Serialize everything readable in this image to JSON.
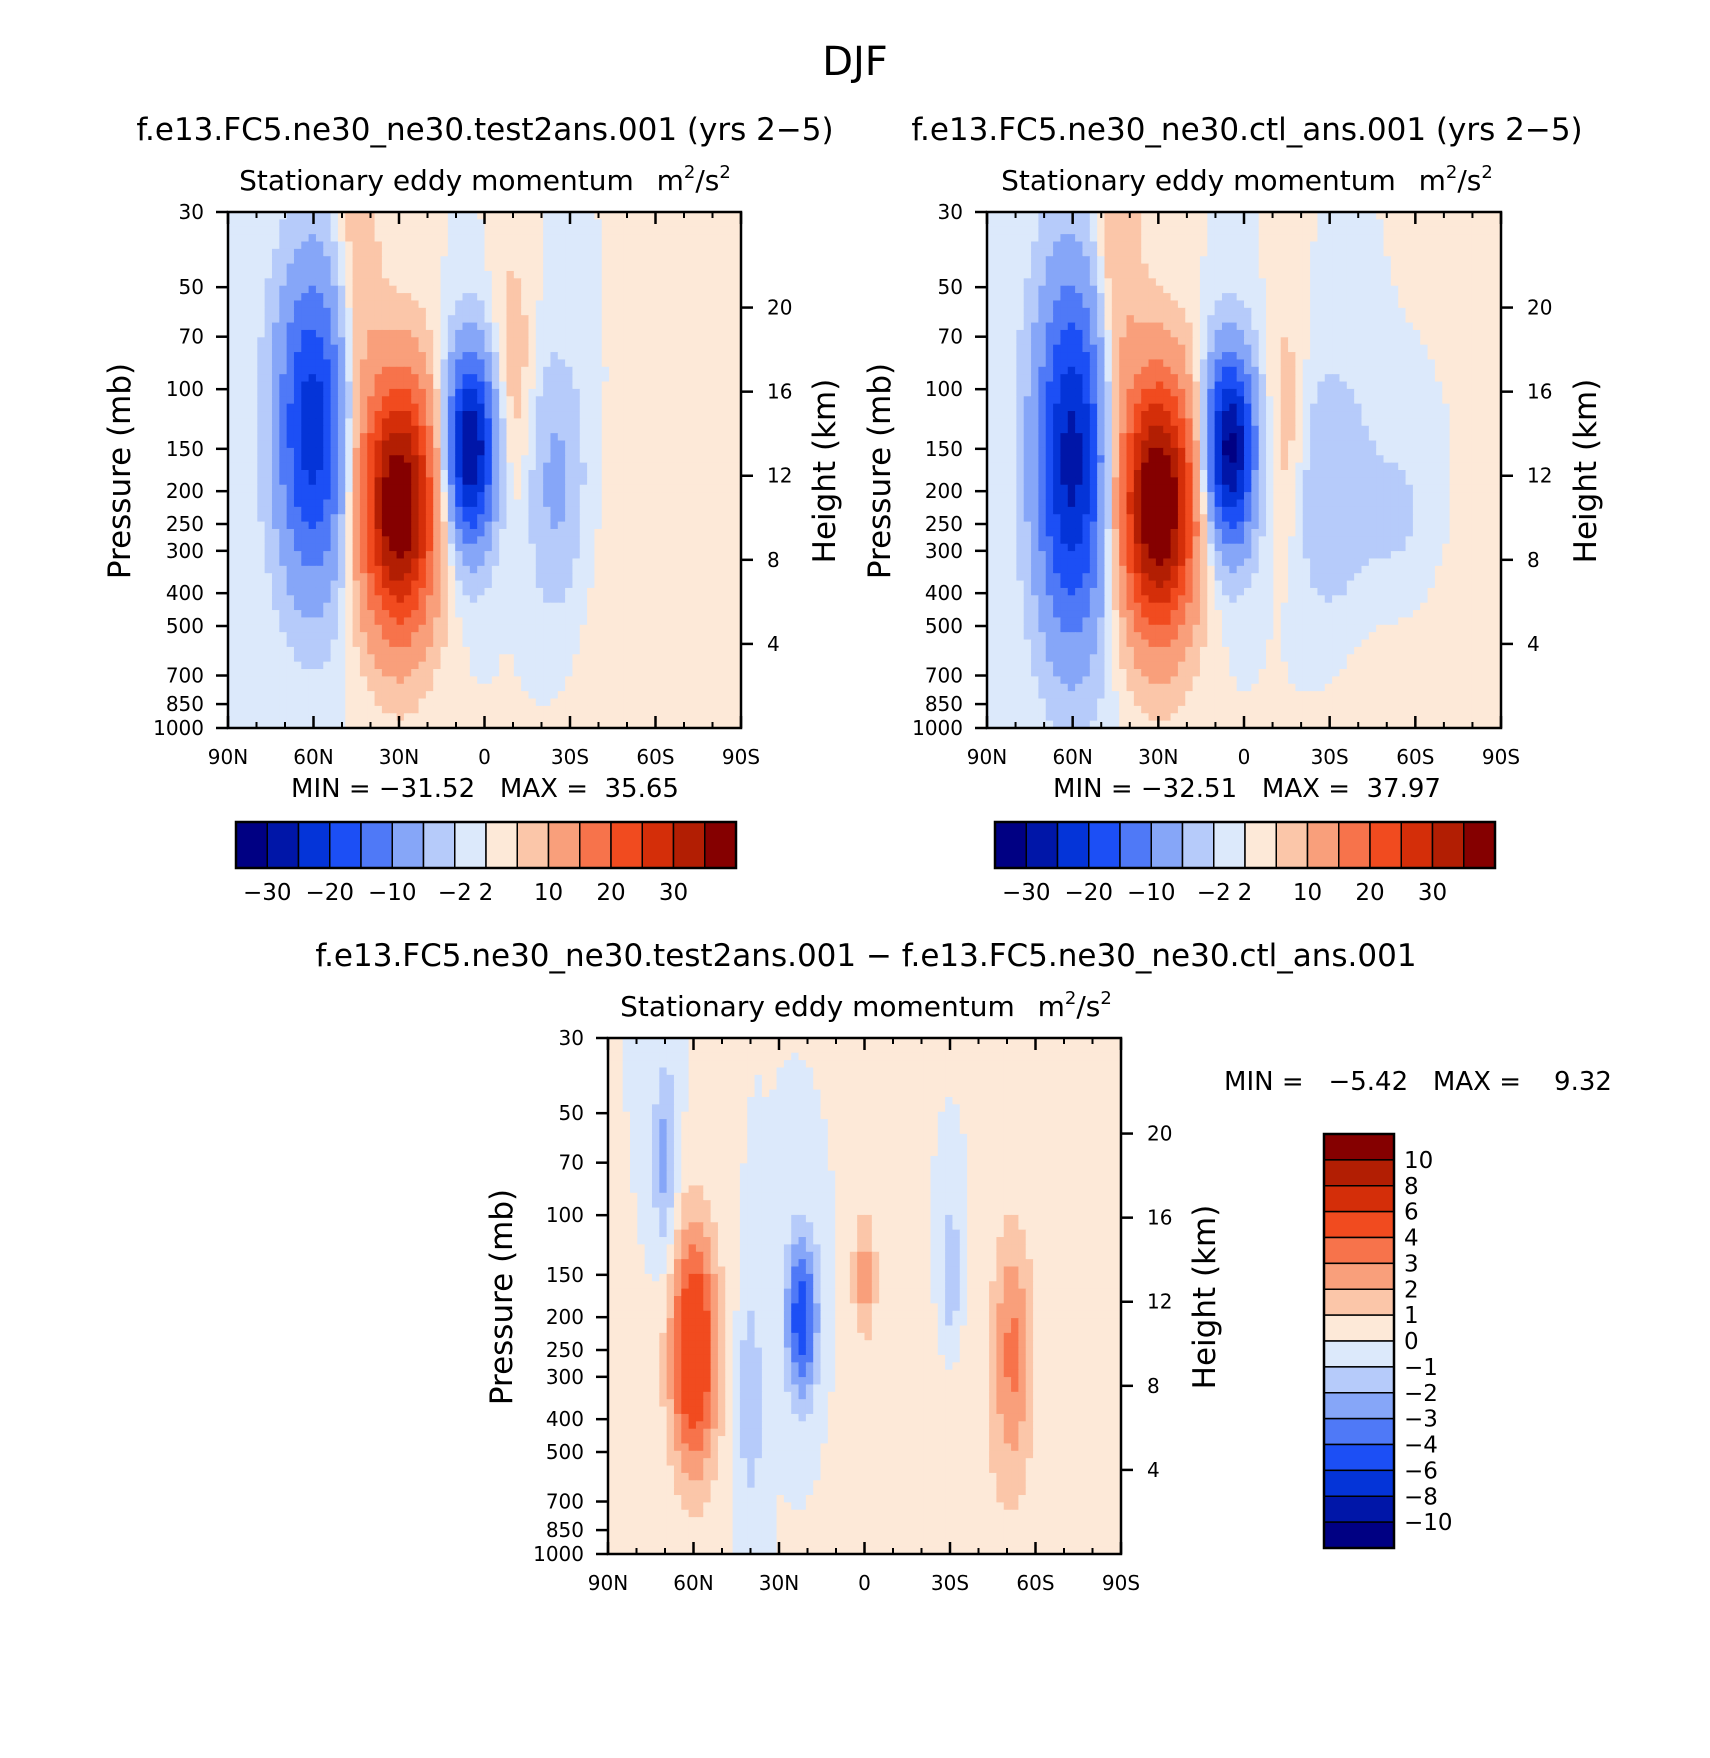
{
  "figure_title": "DJF",
  "units_html": "m²/s²",
  "chart_data": [
    {
      "type": "heatmap",
      "id": "test",
      "case_title": "f.e13.FC5.ne30_ne30.test2ans.001 (yrs 2−5)",
      "subtitle": "Stationary eddy momentum",
      "units_base": "m",
      "units_sup1": "2",
      "units_mid": "/s",
      "units_sup2": "2",
      "ylabel": "Pressure (mb)",
      "y2label": "Height (km)",
      "xticks": [
        "90N",
        "60N",
        "30N",
        "0",
        "30S",
        "60S",
        "90S"
      ],
      "yticks": [
        "30",
        "50",
        "70",
        "100",
        "150",
        "200",
        "250",
        "300",
        "400",
        "500",
        "700",
        "850",
        "1000"
      ],
      "y2ticks": [
        "20",
        "16",
        "12",
        "8",
        "4"
      ],
      "stats": "MIN = −31.52   MAX =  35.65",
      "min": -31.52,
      "max": 35.65,
      "colorbar_labels": [
        "−30",
        "−20",
        "−10",
        "−2",
        "2",
        "10",
        "20",
        "30"
      ],
      "features": [
        {
          "lat": 60,
          "p": 130,
          "amp": -23,
          "slat": 9,
          "sp": 0.75
        },
        {
          "lat": 30,
          "p": 220,
          "amp": 36,
          "slat": 9,
          "sp": 0.6
        },
        {
          "lat": 5,
          "p": 150,
          "amp": -31,
          "slat": 6,
          "sp": 0.45
        },
        {
          "lat": -25,
          "p": 190,
          "amp": -6,
          "slat": 7,
          "sp": 0.6
        },
        {
          "lat": -10,
          "p": 90,
          "amp": 4,
          "slat": 5,
          "sp": 0.6
        },
        {
          "lat": 45,
          "p": 60,
          "amp": 5,
          "slat": 6,
          "sp": 1.0
        },
        {
          "lat": -60,
          "p": 700,
          "amp": 1.5,
          "slat": 20,
          "sp": 1.0
        }
      ]
    },
    {
      "type": "heatmap",
      "id": "ctl",
      "case_title": "f.e13.FC5.ne30_ne30.ctl_ans.001 (yrs 2−5)",
      "subtitle": "Stationary eddy momentum",
      "units_base": "m",
      "units_sup1": "2",
      "units_mid": "/s",
      "units_sup2": "2",
      "ylabel": "Pressure (mb)",
      "y2label": "Height (km)",
      "xticks": [
        "90N",
        "60N",
        "30N",
        "0",
        "30S",
        "60S",
        "90S"
      ],
      "yticks": [
        "30",
        "50",
        "70",
        "100",
        "150",
        "200",
        "250",
        "300",
        "400",
        "500",
        "700",
        "850",
        "1000"
      ],
      "y2ticks": [
        "20",
        "16",
        "12",
        "8",
        "4"
      ],
      "stats": "MIN = −32.51   MAX =  37.97",
      "min": -32.51,
      "max": 37.97,
      "colorbar_labels": [
        "−30",
        "−20",
        "−10",
        "−2",
        "2",
        "10",
        "20",
        "30"
      ],
      "features": [
        {
          "lat": 60,
          "p": 160,
          "amp": -27,
          "slat": 9,
          "sp": 0.85
        },
        {
          "lat": 30,
          "p": 220,
          "amp": 38,
          "slat": 9,
          "sp": 0.6
        },
        {
          "lat": 5,
          "p": 150,
          "amp": -32,
          "slat": 6,
          "sp": 0.45
        },
        {
          "lat": -30,
          "p": 200,
          "amp": -5,
          "slat": 10,
          "sp": 0.6
        },
        {
          "lat": -55,
          "p": 250,
          "amp": -3,
          "slat": 10,
          "sp": 0.5
        },
        {
          "lat": -15,
          "p": 130,
          "amp": 4,
          "slat": 5,
          "sp": 0.6
        },
        {
          "lat": 45,
          "p": 50,
          "amp": 6,
          "slat": 6,
          "sp": 1.0
        },
        {
          "lat": -60,
          "p": 700,
          "amp": 1.5,
          "slat": 20,
          "sp": 1.0
        }
      ]
    },
    {
      "type": "heatmap",
      "id": "diff",
      "case_title": "f.e13.FC5.ne30_ne30.test2ans.001 − f.e13.FC5.ne30_ne30.ctl_ans.001",
      "subtitle": "Stationary eddy momentum",
      "units_base": "m",
      "units_sup1": "2",
      "units_mid": "/s",
      "units_sup2": "2",
      "ylabel": "Pressure (mb)",
      "y2label": "Height (km)",
      "xticks": [
        "90N",
        "60N",
        "30N",
        "0",
        "30S",
        "60S",
        "90S"
      ],
      "yticks": [
        "30",
        "50",
        "70",
        "100",
        "150",
        "200",
        "250",
        "300",
        "400",
        "500",
        "700",
        "850",
        "1000"
      ],
      "y2ticks": [
        "20",
        "16",
        "12",
        "8",
        "4"
      ],
      "stats": "MIN =   −5.42   MAX =    9.32",
      "min": -5.42,
      "max": 9.32,
      "colorbar_labels": [
        "10",
        "8",
        "6",
        "4",
        "3",
        "2",
        "1",
        "0",
        "−1",
        "−2",
        "−3",
        "−4",
        "−6",
        "−8",
        "−10"
      ],
      "features": [
        {
          "lat": 60,
          "p": 250,
          "amp": 6,
          "slat": 6,
          "sp": 0.6
        },
        {
          "lat": 70,
          "p": 70,
          "amp": -2.5,
          "slat": 3,
          "sp": 0.5
        },
        {
          "lat": 22,
          "p": 200,
          "amp": -5,
          "slat": 4,
          "sp": 0.4
        },
        {
          "lat": 40,
          "p": 350,
          "amp": -2,
          "slat": 3,
          "sp": 0.5
        },
        {
          "lat": 0,
          "p": 150,
          "amp": 2.5,
          "slat": 3,
          "sp": 0.3
        },
        {
          "lat": -30,
          "p": 150,
          "amp": -2,
          "slat": 3,
          "sp": 0.4
        },
        {
          "lat": -52,
          "p": 250,
          "amp": 3,
          "slat": 5,
          "sp": 0.6
        },
        {
          "lat": -30,
          "p": 700,
          "amp": 0.8,
          "slat": 20,
          "sp": 1.0
        }
      ]
    }
  ]
}
